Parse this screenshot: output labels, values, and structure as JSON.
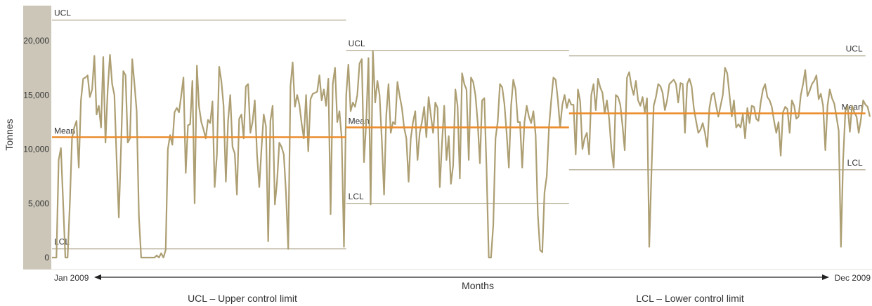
{
  "colors": {
    "band": "#cbc6b8",
    "series": "#ad9f73",
    "mean": "#ec8c2b",
    "limit": "#ada489",
    "axis": "#222222"
  },
  "chart_data": {
    "type": "line",
    "ylabel": "Tonnes",
    "xlabel": "Months",
    "ylim": [
      0,
      23000
    ],
    "yticks": [
      0,
      5000,
      10000,
      15000,
      20000
    ],
    "ytick_labels": [
      "0",
      "5,000",
      "10,000",
      "15,000",
      "20,000"
    ],
    "x_start_label": "Jan 2009",
    "x_end_label": "Dec 2009",
    "legend": [
      "UCL – Upper control limit",
      "LCL – Lower control limit"
    ],
    "line_labels": {
      "ucl": "UCL",
      "mean": "Mean",
      "lcl": "LCL"
    },
    "segments": [
      {
        "start": 0,
        "end": 132,
        "ucl": 21900,
        "mean": 11100,
        "lcl": 800
      },
      {
        "start": 132,
        "end": 232,
        "ucl": 19100,
        "mean": 12000,
        "lcl": 5000
      },
      {
        "start": 232,
        "end": 365,
        "ucl": 18600,
        "mean": 13300,
        "lcl": 8100
      }
    ],
    "series": [
      {
        "values": [
          0,
          0,
          0,
          9000,
          10100,
          5000,
          0,
          0,
          5000,
          11000,
          12000,
          12600,
          8300,
          14500,
          16500,
          16600,
          16800,
          14800,
          15500,
          18600,
          13200,
          14000,
          12000,
          18500,
          10600,
          15500,
          18700,
          16000,
          15000,
          9000,
          3700,
          10300,
          17200,
          16800,
          10600,
          11000,
          18300,
          16000,
          13500,
          3800,
          0,
          0,
          0,
          0,
          0,
          0,
          0,
          200,
          0,
          400,
          0,
          700,
          10000,
          11300,
          10400,
          13400,
          13800,
          13400,
          15000,
          16600,
          7800,
          12200,
          12300,
          16300,
          5000,
          17700,
          13900,
          12500,
          11800,
          11000,
          12700,
          12400,
          14400,
          6500,
          9500,
          17600,
          16300,
          14000,
          7000,
          12600,
          15000,
          10200,
          9600,
          5800,
          12800,
          13200,
          11000,
          15800,
          16000,
          11500,
          12500,
          14500,
          9500,
          6500,
          10000,
          13200,
          12100,
          1500,
          12600,
          14000,
          4900,
          7000,
          10600,
          10200,
          9500,
          6000,
          800,
          15800,
          18000,
          13900,
          15000,
          14100,
          12400,
          11000,
          15000,
          9800,
          14600,
          15100,
          15200,
          15300,
          16800,
          14500,
          15500,
          14000,
          16500,
          4000,
          16000,
          17500,
          12500,
          13500,
          11000,
          1000,
          15000,
          17800,
          13500,
          14300,
          13900,
          15000,
          17900,
          18300,
          8800,
          12500,
          18400,
          4900,
          19000,
          14300,
          16300,
          15000,
          10800,
          5800,
          13100,
          16000,
          11500,
          12500,
          12300,
          16200,
          14900,
          13800,
          12000,
          11000,
          7000,
          11000,
          12500,
          13500,
          9000,
          11500,
          12500,
          13900,
          11100,
          14800,
          13100,
          11500,
          14300,
          13800,
          6500,
          10500,
          14000,
          9000,
          11200,
          6800,
          8500,
          15500,
          14000,
          7300,
          17000,
          16000,
          15500,
          9000,
          16600,
          16200,
          15000,
          12500,
          8700,
          14500,
          14700,
          8000,
          0,
          0,
          3000,
          11000,
          12500,
          16000,
          15700,
          14200,
          11500,
          8300,
          14000,
          16400,
          15500,
          12500,
          12500,
          8300,
          12500,
          14000,
          13000,
          12400,
          13500,
          11300,
          4000,
          700,
          500,
          6000,
          7500,
          12000,
          14500,
          16600,
          16400,
          14500,
          12000,
          14100,
          15000,
          13800,
          14600,
          14100,
          14100,
          9500,
          15500,
          14400,
          10000,
          11000,
          11500,
          9500,
          15000,
          16000,
          13600,
          16500,
          15700,
          15200,
          13300,
          14500,
          12800,
          10000,
          8300,
          15000,
          14800,
          14100,
          12200,
          9900,
          16600,
          17100,
          15800,
          15000,
          16300,
          14500,
          14000,
          14800,
          13400,
          14700,
          1000,
          8000,
          14000,
          14800,
          16000,
          15800,
          15200,
          13600,
          14500,
          16000,
          16200,
          16400,
          16000,
          14300,
          16100,
          16000,
          11500,
          16000,
          16500,
          15800,
          13800,
          12600,
          11500,
          11800,
          12400,
          11500,
          10200,
          13800,
          15000,
          15200,
          14000,
          13000,
          14000,
          15000,
          17500,
          17000,
          15000,
          13000,
          14500,
          12000,
          12300,
          12000,
          13200,
          11000,
          13800,
          12400,
          14000,
          13900,
          12800,
          12600,
          14300,
          15500,
          16000,
          14800,
          14500,
          13900,
          12600,
          11500,
          12500,
          9400,
          13400,
          13900,
          13700,
          11500,
          14500,
          14000,
          12800,
          13000,
          15000,
          16000,
          17300,
          14900,
          15400,
          16000,
          16300,
          16800,
          14600,
          15100,
          14000,
          9900,
          14000,
          15500,
          14700,
          14200,
          13000,
          11700,
          1000,
          9000,
          13500,
          14000,
          11600,
          14000,
          13400,
          13000,
          11500,
          12800,
          14500,
          14100,
          13900,
          13000
        ]
      }
    ]
  }
}
